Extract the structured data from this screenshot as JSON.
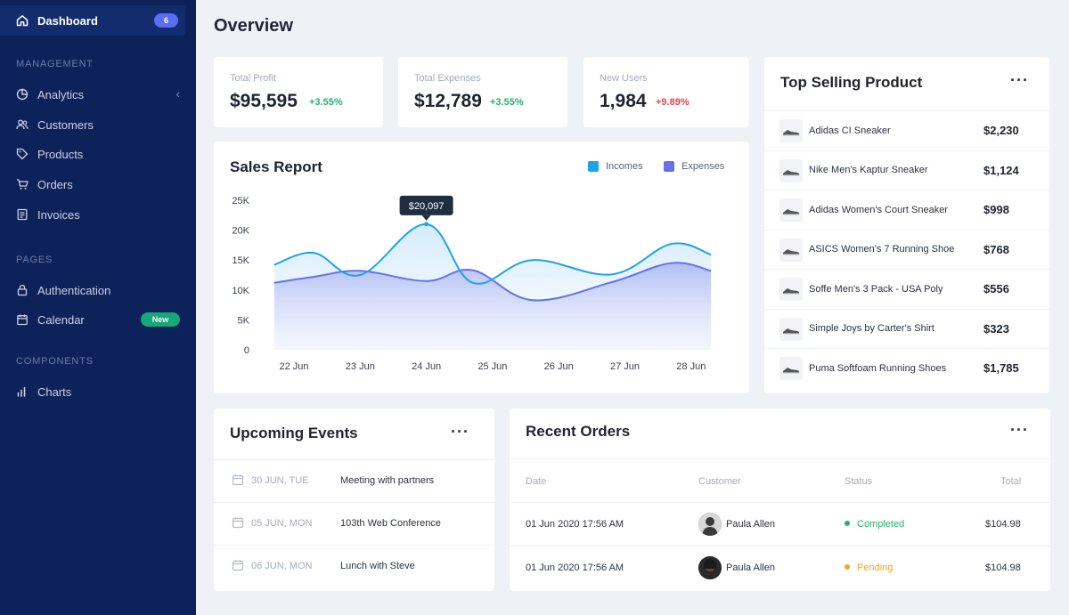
{
  "sidebar": {
    "active": {
      "label": "Dashboard",
      "badge": "6"
    },
    "sections": [
      {
        "title": "MANAGEMENT",
        "items": [
          {
            "label": "Analytics",
            "icon": "analytics-icon"
          },
          {
            "label": "Customers",
            "icon": "users-icon"
          },
          {
            "label": "Products",
            "icon": "tag-icon"
          },
          {
            "label": "Orders",
            "icon": "cart-icon"
          },
          {
            "label": "Invoices",
            "icon": "invoice-icon"
          }
        ]
      },
      {
        "title": "PAGES",
        "items": [
          {
            "label": "Authentication",
            "icon": "lock-icon"
          },
          {
            "label": "Calendar",
            "icon": "calendar-icon",
            "badge": "New"
          }
        ]
      },
      {
        "title": "COMPONENTS",
        "items": [
          {
            "label": "Charts",
            "icon": "bar-chart-icon"
          }
        ]
      }
    ]
  },
  "page_title": "Overview",
  "stats": [
    {
      "label": "Total Profit",
      "value": "$95,595",
      "change": "+3.55%",
      "trend": "up"
    },
    {
      "label": "Total Expenses",
      "value": "$12,789",
      "change": "+3.55%",
      "trend": "up"
    },
    {
      "label": "New Users",
      "value": "1,984",
      "change": "+9.89%",
      "trend": "down"
    }
  ],
  "sales_report": {
    "title": "Sales Report",
    "tooltip": "$20,097",
    "legend": [
      {
        "name": "Incomes",
        "color": "#1ea3ea"
      },
      {
        "name": "Expenses",
        "color": "#6670ea"
      }
    ]
  },
  "chart_data": {
    "type": "area",
    "title": "Sales Report",
    "categories": [
      "22 Jun",
      "23 Jun",
      "24 Jun",
      "25 Jun",
      "26 Jun",
      "27 Jun",
      "28 Jun"
    ],
    "x": [
      0,
      0.5,
      1,
      1.5,
      2,
      2.5,
      3,
      3.5,
      4,
      4.5,
      5,
      5.5,
      6,
      6.5
    ],
    "series": [
      {
        "name": "Incomes",
        "color": "#1ea3ea",
        "values": [
          14200,
          16200,
          12500,
          21000,
          11200,
          15000,
          12600,
          17700,
          15900
        ],
        "x": [
          -0.3,
          0.3,
          1.0,
          2.0,
          2.7,
          3.6,
          4.8,
          5.7,
          6.3
        ]
      },
      {
        "name": "Expenses",
        "color": "#6670ea",
        "values": [
          11200,
          12200,
          13200,
          11500,
          13300,
          8300,
          11300,
          14500,
          13200
        ],
        "x": [
          -0.3,
          0.3,
          1.0,
          2.0,
          2.7,
          3.6,
          4.8,
          5.7,
          6.3
        ]
      }
    ],
    "yticks": [
      "0",
      "5K",
      "10K",
      "15K",
      "20K",
      "25K"
    ],
    "ylim": [
      0,
      25000
    ],
    "annotation": {
      "label": "$20,097",
      "category": "24 Jun"
    },
    "legend_position": "top-right",
    "grid": false
  },
  "top_selling": {
    "title": "Top Selling Product",
    "items": [
      {
        "name": "Adidas CI Sneaker",
        "price": "$2,230"
      },
      {
        "name": "Nike Men's Kaptur Sneaker",
        "price": "$1,124"
      },
      {
        "name": "Adidas Women's Court Sneaker",
        "price": "$998"
      },
      {
        "name": "ASICS Women's 7 Running Shoe",
        "price": "$768"
      },
      {
        "name": "Soffe Men's 3 Pack - USA Poly",
        "price": "$556"
      },
      {
        "name": "Simple Joys by Carter's Shirt",
        "price": "$323"
      },
      {
        "name": "Puma Softfoam Running Shoes",
        "price": "$1,785"
      }
    ]
  },
  "events": {
    "title": "Upcoming Events",
    "items": [
      {
        "date": "30 JUN, TUE",
        "text": "Meeting with partners"
      },
      {
        "date": "05 JUN, MON",
        "text": "103th Web Conference"
      },
      {
        "date": "06 JUN, MON",
        "text": "Lunch with Steve"
      }
    ]
  },
  "orders": {
    "title": "Recent Orders",
    "columns": [
      "Date",
      "Customer",
      "Status",
      "Total"
    ],
    "rows": [
      {
        "date": "01 Jun 2020 17:56 AM",
        "customer": "Paula Allen",
        "status": "Completed",
        "status_color": "#23b46e",
        "total": "$104.98"
      },
      {
        "date": "01 Jun 2020 17:56 AM",
        "customer": "Paula Allen",
        "status": "Pending",
        "status_color": "#f5a524",
        "total": "$104.98"
      }
    ]
  }
}
